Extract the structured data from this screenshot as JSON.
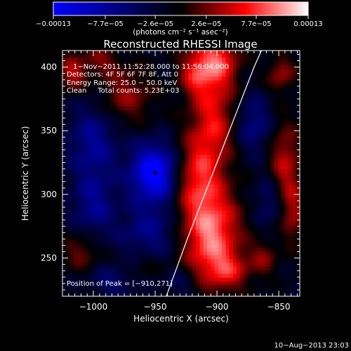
{
  "chart_data": {
    "type": "heatmap",
    "title": "Reconstructed RHESSI Image",
    "xlabel": "Heliocentric X (arcsec)",
    "ylabel": "Heliocentric Y (arcsec)",
    "xlim": [
      -1025,
      -833
    ],
    "ylim": [
      220,
      413
    ],
    "xticks": [
      -1000,
      -950,
      -900,
      -850
    ],
    "xtick_labels": [
      "−1000",
      "−950",
      "−900",
      "−850"
    ],
    "yticks": [
      250,
      300,
      350,
      400
    ],
    "ytick_labels": [
      "250",
      "300",
      "350",
      "400"
    ],
    "colorbar": {
      "min": -0.00013,
      "max": 0.00013,
      "ticks": [
        -0.00013,
        -7.7e-05,
        -2.6e-05,
        2.6e-05,
        7.7e-05,
        0.00013
      ],
      "tick_labels": [
        "−0.00013",
        "−7.7e−05",
        "−2.6e−05",
        "2.6e−05",
        "7.7e−05",
        "0.00013"
      ],
      "units": "(photons cm⁻² s⁻¹ asec⁻²)"
    },
    "annotations": [
      "1−Nov−2011 11:52:28.000 to 11:56:04.000",
      "Detectors: 4F 5F 6F 7F 8F, Att 0",
      "Energy Range: 25.0 − 50.0 keV",
      "Clean     Total counts: 5.23E+03",
      "Position of Peak = [−910,271]"
    ],
    "peak_position": [
      -910,
      271
    ],
    "min_marker": [
      -950,
      317
    ],
    "limb_curve": [
      [
        -941,
        220
      ],
      [
        -924,
        265
      ],
      [
        -906,
        310
      ],
      [
        -888,
        355
      ],
      [
        -870,
        400
      ],
      [
        -864,
        413
      ]
    ],
    "blobs": [
      {
        "x": -905,
        "y": 268,
        "value": 0.00011,
        "sx": 16,
        "sy": 26
      },
      {
        "x": -918,
        "y": 315,
        "value": 7e-05,
        "sx": 14,
        "sy": 22
      },
      {
        "x": -903,
        "y": 357,
        "value": 7e-05,
        "sx": 12,
        "sy": 24
      },
      {
        "x": -900,
        "y": 405,
        "value": 9e-05,
        "sx": 12,
        "sy": 16
      },
      {
        "x": -975,
        "y": 378,
        "value": 5e-05,
        "sx": 16,
        "sy": 16
      },
      {
        "x": -995,
        "y": 405,
        "value": 4e-05,
        "sx": 10,
        "sy": 8
      },
      {
        "x": -1017,
        "y": 395,
        "value": 6e-05,
        "sx": 8,
        "sy": 10
      },
      {
        "x": -918,
        "y": 395,
        "value": 6e-05,
        "sx": 9,
        "sy": 14
      },
      {
        "x": -845,
        "y": 325,
        "value": 6e-05,
        "sx": 9,
        "sy": 22
      },
      {
        "x": -848,
        "y": 395,
        "value": 5e-05,
        "sx": 8,
        "sy": 10
      },
      {
        "x": -838,
        "y": 285,
        "value": 5e-05,
        "sx": 7,
        "sy": 16
      },
      {
        "x": -1010,
        "y": 255,
        "value": 4e-05,
        "sx": 10,
        "sy": 10
      },
      {
        "x": -890,
        "y": 240,
        "value": 5e-05,
        "sx": 12,
        "sy": 10
      },
      {
        "x": -960,
        "y": 245,
        "value": 2e-05,
        "sx": 12,
        "sy": 8
      },
      {
        "x": -862,
        "y": 250,
        "value": 4e-05,
        "sx": 8,
        "sy": 10
      },
      {
        "x": -950,
        "y": 317,
        "value": -0.00013,
        "sx": 14,
        "sy": 16
      },
      {
        "x": -1000,
        "y": 340,
        "value": -6e-05,
        "sx": 14,
        "sy": 24
      },
      {
        "x": -955,
        "y": 270,
        "value": -5e-05,
        "sx": 18,
        "sy": 16
      },
      {
        "x": -1000,
        "y": 290,
        "value": -5e-05,
        "sx": 12,
        "sy": 16
      },
      {
        "x": -870,
        "y": 355,
        "value": -5e-05,
        "sx": 10,
        "sy": 16
      },
      {
        "x": -858,
        "y": 295,
        "value": -4e-05,
        "sx": 8,
        "sy": 14
      },
      {
        "x": -985,
        "y": 232,
        "value": -4e-05,
        "sx": 12,
        "sy": 8
      },
      {
        "x": -928,
        "y": 230,
        "value": -3e-05,
        "sx": 10,
        "sy": 8
      }
    ]
  },
  "footer": {
    "date": "10−Aug−2013 23:03"
  }
}
